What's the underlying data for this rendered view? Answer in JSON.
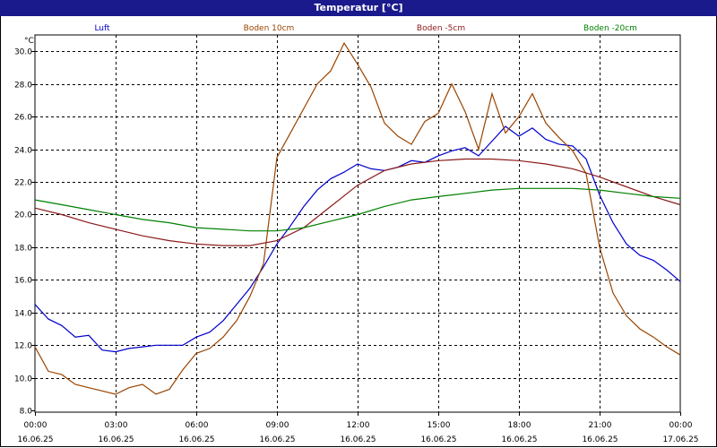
{
  "window": {
    "title": "Temperatur [°C]"
  },
  "chart_data": {
    "type": "line",
    "ylabel": "°C",
    "ylim": [
      8.0,
      31.0
    ],
    "grid": true,
    "legend_position": "top",
    "y_ticks": [
      "8.0",
      "10.0",
      "12.0",
      "14.0",
      "16.0",
      "18.0",
      "20.0",
      "22.0",
      "24.0",
      "26.0",
      "28.0",
      "30.0"
    ],
    "x_ticks": [
      {
        "time": "00:00",
        "date": "16.06.25",
        "hour": 0
      },
      {
        "time": "03:00",
        "date": "16.06.25",
        "hour": 3
      },
      {
        "time": "06:00",
        "date": "16.06.25",
        "hour": 6
      },
      {
        "time": "09:00",
        "date": "16.06.25",
        "hour": 9
      },
      {
        "time": "12:00",
        "date": "16.06.25",
        "hour": 12
      },
      {
        "time": "15:00",
        "date": "16.06.25",
        "hour": 15
      },
      {
        "time": "18:00",
        "date": "16.06.25",
        "hour": 18
      },
      {
        "time": "21:00",
        "date": "16.06.25",
        "hour": 21
      },
      {
        "time": "00:00",
        "date": "17.06.25",
        "hour": 24
      }
    ],
    "series": [
      {
        "name": "Luft",
        "color": "#0000cc",
        "points": [
          [
            0,
            14.5
          ],
          [
            0.5,
            13.6
          ],
          [
            1,
            13.2
          ],
          [
            1.5,
            12.5
          ],
          [
            2,
            12.6
          ],
          [
            2.5,
            11.7
          ],
          [
            3,
            11.6
          ],
          [
            3.5,
            11.8
          ],
          [
            4,
            11.9
          ],
          [
            4.5,
            12.0
          ],
          [
            5,
            12.0
          ],
          [
            5.5,
            12.0
          ],
          [
            6,
            12.5
          ],
          [
            6.5,
            12.8
          ],
          [
            7,
            13.5
          ],
          [
            7.5,
            14.5
          ],
          [
            8,
            15.5
          ],
          [
            8.5,
            16.8
          ],
          [
            9,
            18.2
          ],
          [
            9.5,
            19.3
          ],
          [
            10,
            20.5
          ],
          [
            10.5,
            21.5
          ],
          [
            11,
            22.2
          ],
          [
            11.5,
            22.6
          ],
          [
            12,
            23.1
          ],
          [
            12.5,
            22.8
          ],
          [
            13,
            22.7
          ],
          [
            13.5,
            22.9
          ],
          [
            14,
            23.3
          ],
          [
            14.5,
            23.2
          ],
          [
            15,
            23.6
          ],
          [
            15.5,
            23.9
          ],
          [
            16,
            24.1
          ],
          [
            16.5,
            23.6
          ],
          [
            17,
            24.5
          ],
          [
            17.5,
            25.4
          ],
          [
            18,
            24.8
          ],
          [
            18.5,
            25.3
          ],
          [
            19,
            24.6
          ],
          [
            19.5,
            24.3
          ],
          [
            20,
            24.2
          ],
          [
            20.5,
            23.4
          ],
          [
            21,
            21.2
          ],
          [
            21.5,
            19.5
          ],
          [
            22,
            18.2
          ],
          [
            22.5,
            17.5
          ],
          [
            23,
            17.2
          ],
          [
            23.5,
            16.6
          ],
          [
            24,
            15.9
          ]
        ]
      },
      {
        "name": "Boden 10cm",
        "color": "#994400",
        "points": [
          [
            0,
            11.9
          ],
          [
            0.5,
            10.4
          ],
          [
            1,
            10.2
          ],
          [
            1.5,
            9.6
          ],
          [
            2,
            9.4
          ],
          [
            2.5,
            9.2
          ],
          [
            3,
            9.0
          ],
          [
            3.5,
            9.4
          ],
          [
            4,
            9.6
          ],
          [
            4.5,
            9.0
          ],
          [
            5,
            9.3
          ],
          [
            5.5,
            10.5
          ],
          [
            6,
            11.5
          ],
          [
            6.5,
            11.8
          ],
          [
            7,
            12.5
          ],
          [
            7.5,
            13.5
          ],
          [
            8,
            15.0
          ],
          [
            8.5,
            17.0
          ],
          [
            9,
            23.5
          ],
          [
            9.5,
            25.0
          ],
          [
            10,
            26.5
          ],
          [
            10.5,
            28.0
          ],
          [
            11,
            28.8
          ],
          [
            11.5,
            30.5
          ],
          [
            12,
            29.2
          ],
          [
            12.5,
            27.8
          ],
          [
            13,
            25.6
          ],
          [
            13.5,
            24.8
          ],
          [
            14,
            24.3
          ],
          [
            14.5,
            25.7
          ],
          [
            15,
            26.2
          ],
          [
            15.5,
            28.0
          ],
          [
            16,
            26.3
          ],
          [
            16.5,
            24.0
          ],
          [
            17,
            27.4
          ],
          [
            17.5,
            25.0
          ],
          [
            18,
            26.0
          ],
          [
            18.5,
            27.4
          ],
          [
            19,
            25.6
          ],
          [
            19.5,
            24.7
          ],
          [
            20,
            23.9
          ],
          [
            20.5,
            22.5
          ],
          [
            21,
            18.0
          ],
          [
            21.5,
            15.2
          ],
          [
            22,
            13.8
          ],
          [
            22.5,
            13.0
          ],
          [
            23,
            12.5
          ],
          [
            23.5,
            11.9
          ],
          [
            24,
            11.4
          ]
        ]
      },
      {
        "name": "Boden -5cm",
        "color": "#8b1a1a",
        "points": [
          [
            0,
            20.4
          ],
          [
            1,
            20.0
          ],
          [
            2,
            19.5
          ],
          [
            3,
            19.1
          ],
          [
            4,
            18.7
          ],
          [
            5,
            18.4
          ],
          [
            6,
            18.2
          ],
          [
            7,
            18.1
          ],
          [
            8,
            18.1
          ],
          [
            9,
            18.4
          ],
          [
            10,
            19.2
          ],
          [
            11,
            20.5
          ],
          [
            12,
            21.8
          ],
          [
            13,
            22.7
          ],
          [
            14,
            23.1
          ],
          [
            15,
            23.3
          ],
          [
            16,
            23.4
          ],
          [
            17,
            23.4
          ],
          [
            18,
            23.3
          ],
          [
            19,
            23.1
          ],
          [
            20,
            22.8
          ],
          [
            21,
            22.3
          ],
          [
            22,
            21.7
          ],
          [
            23,
            21.1
          ],
          [
            24,
            20.6
          ]
        ]
      },
      {
        "name": "Boden -20cm",
        "color": "#008000",
        "points": [
          [
            0,
            20.9
          ],
          [
            1,
            20.6
          ],
          [
            2,
            20.3
          ],
          [
            3,
            20.0
          ],
          [
            4,
            19.7
          ],
          [
            5,
            19.5
          ],
          [
            6,
            19.2
          ],
          [
            7,
            19.1
          ],
          [
            8,
            19.0
          ],
          [
            9,
            19.0
          ],
          [
            10,
            19.2
          ],
          [
            11,
            19.6
          ],
          [
            12,
            20.0
          ],
          [
            13,
            20.5
          ],
          [
            14,
            20.9
          ],
          [
            15,
            21.1
          ],
          [
            16,
            21.3
          ],
          [
            17,
            21.5
          ],
          [
            18,
            21.6
          ],
          [
            19,
            21.6
          ],
          [
            20,
            21.6
          ],
          [
            21,
            21.5
          ],
          [
            22,
            21.3
          ],
          [
            23,
            21.1
          ],
          [
            24,
            21.0
          ]
        ]
      }
    ]
  }
}
